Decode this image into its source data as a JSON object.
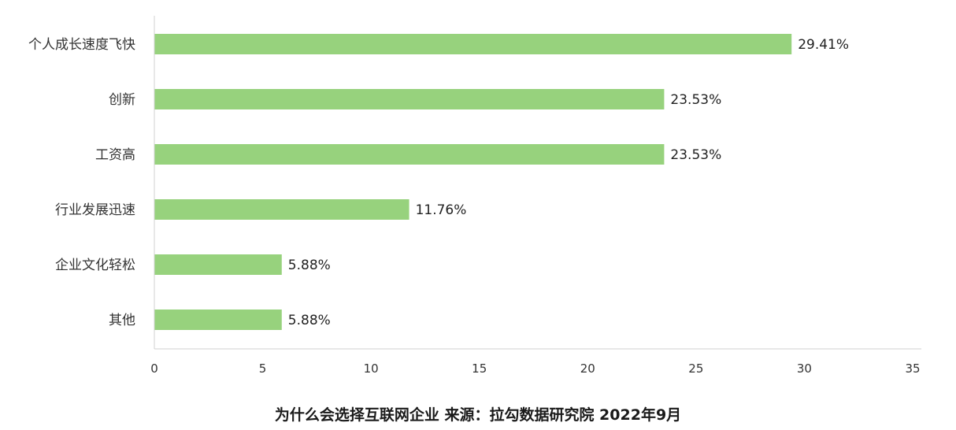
{
  "chart_data": {
    "type": "bar",
    "orientation": "horizontal",
    "categories": [
      "个人成长速度飞快",
      "创新",
      "工资高",
      "行业发展迅速",
      "企业文化轻松",
      "其他"
    ],
    "values": [
      29.41,
      23.53,
      23.53,
      11.76,
      5.88,
      5.88
    ],
    "value_labels": [
      "29.41%",
      "23.53%",
      "23.53%",
      "11.76%",
      "5.88%",
      "5.88%"
    ],
    "xlim": [
      0,
      35
    ],
    "x_ticks": [
      0,
      5,
      10,
      15,
      20,
      25,
      30,
      35
    ],
    "grid": false,
    "bar_color": "#97d27d",
    "axis_color": "#d0d0d0",
    "caption": "为什么会选择互联网企业 来源：拉勾数据研究院 2022年9月"
  }
}
